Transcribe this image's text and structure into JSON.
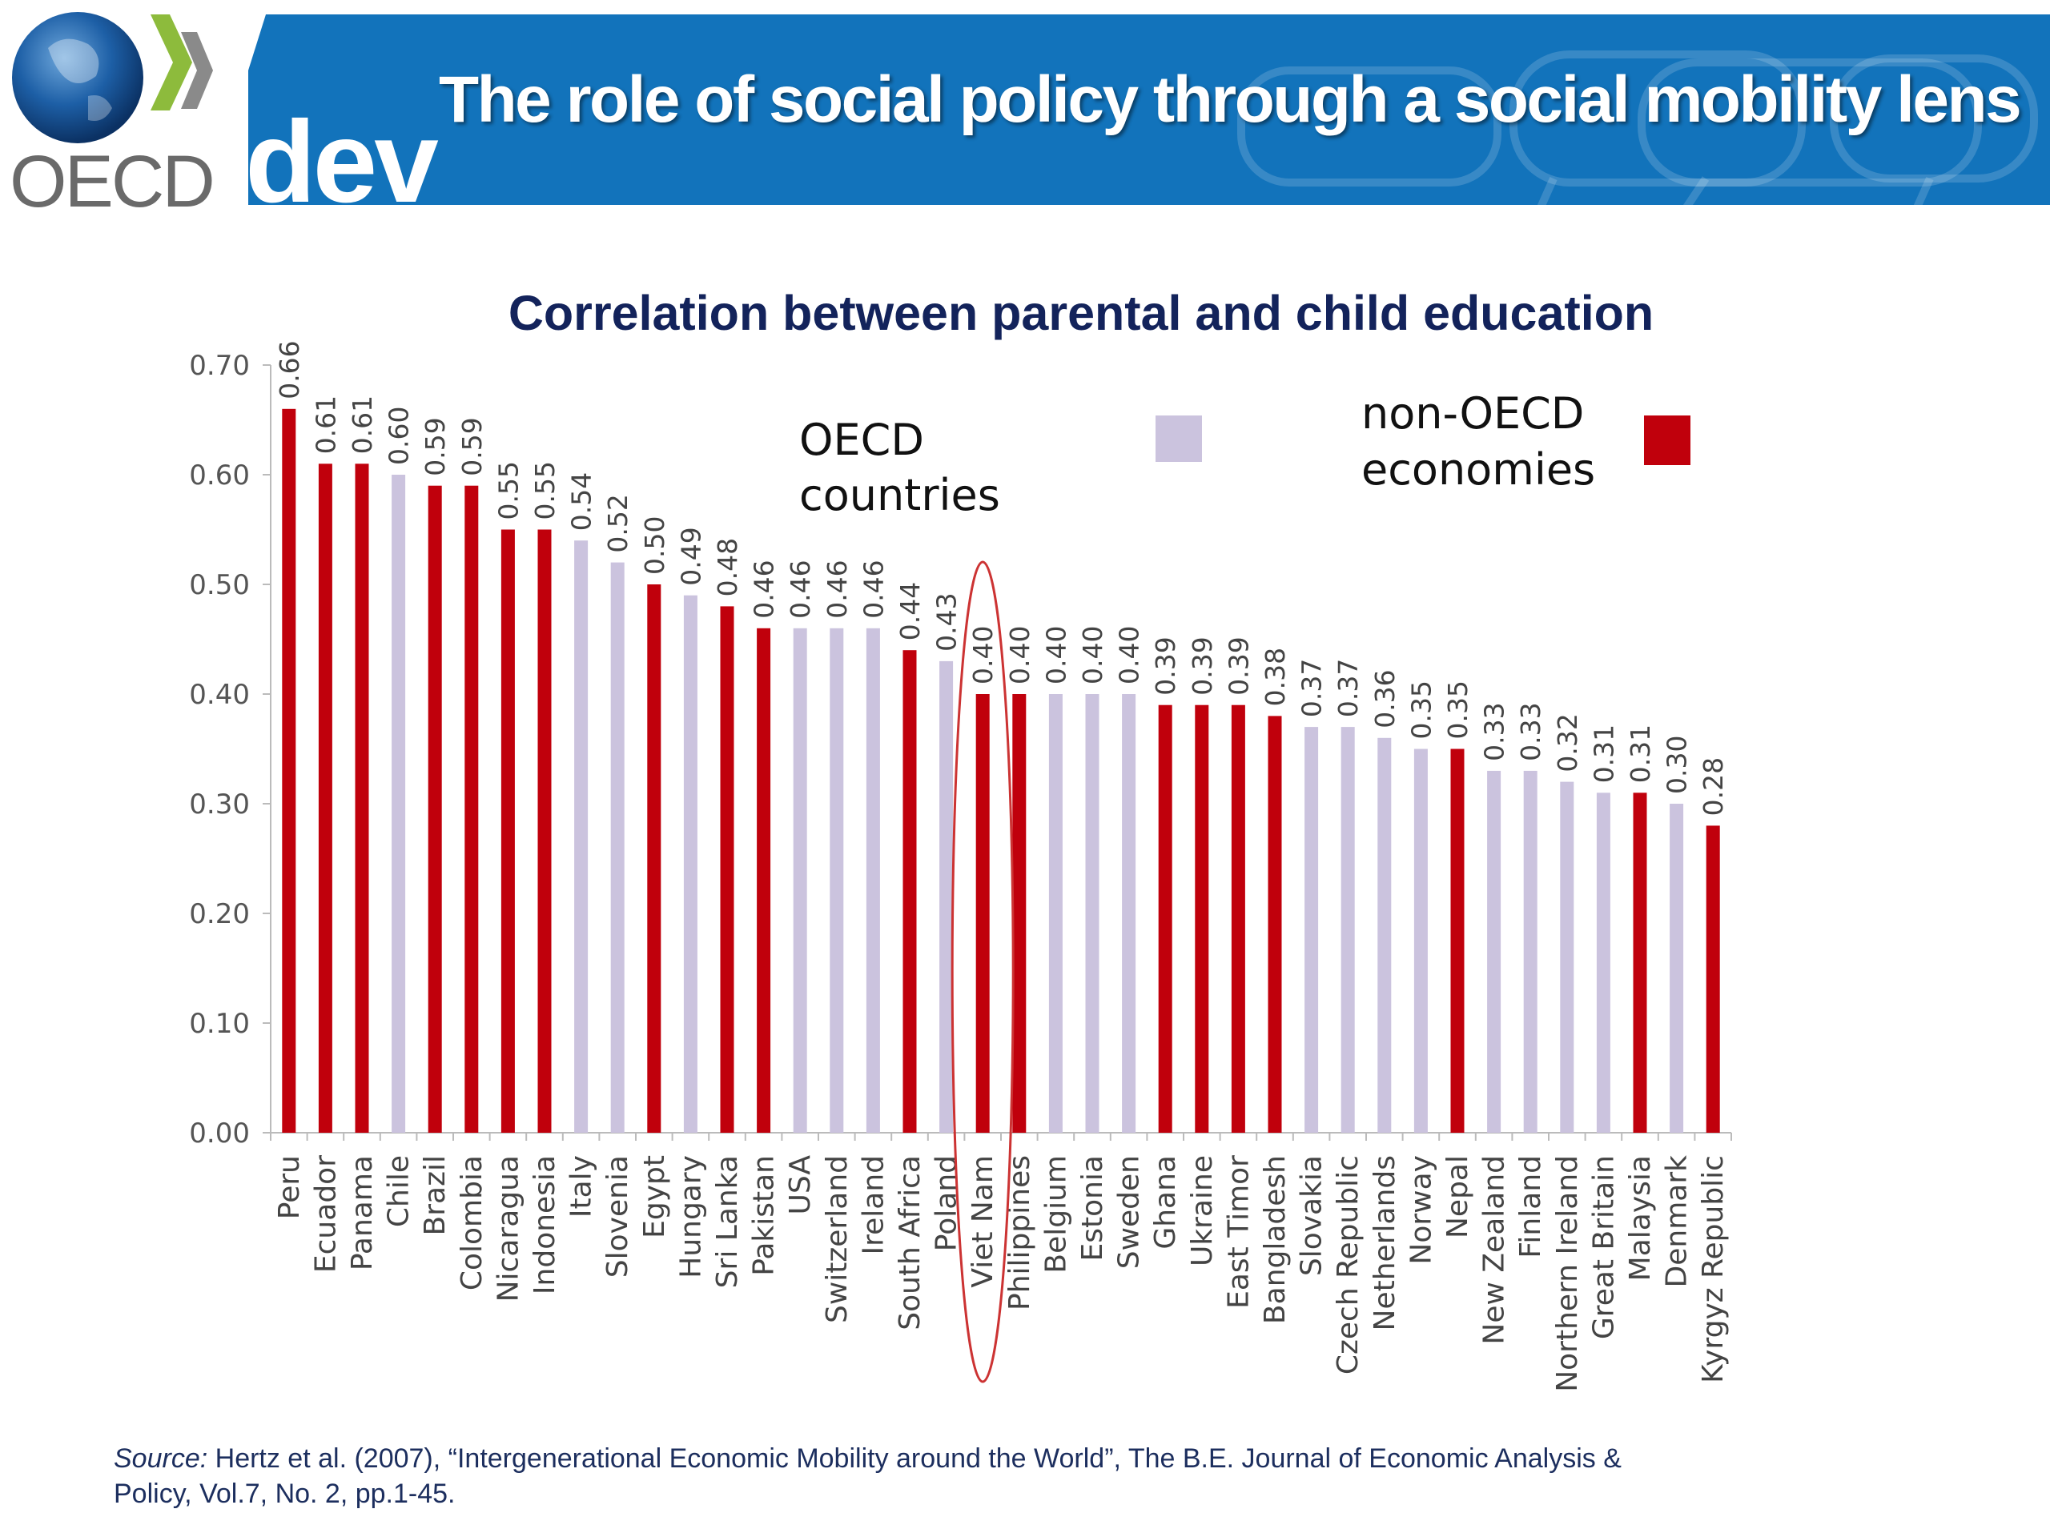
{
  "header": {
    "title": "The role of social policy through a social mobility lens",
    "logo_text": "OECD",
    "dev_text": "dev",
    "bar_color": "#1273bb"
  },
  "chart_data": {
    "type": "bar",
    "title": "Correlation between parental and child education",
    "ylim": [
      0,
      0.7
    ],
    "yticks": [
      "0.00",
      "0.10",
      "0.20",
      "0.30",
      "0.40",
      "0.50",
      "0.60",
      "0.70"
    ],
    "categories": [
      "Peru",
      "Ecuador",
      "Panama",
      "Chile",
      "Brazil",
      "Colombia",
      "Nicaragua",
      "Indonesia",
      "Italy",
      "Slovenia",
      "Egypt",
      "Hungary",
      "Sri Lanka",
      "Pakistan",
      "USA",
      "Switzerland",
      "Ireland",
      "South Africa",
      "Poland",
      "Viet Nam",
      "Philippines",
      "Belgium",
      "Estonia",
      "Sweden",
      "Ghana",
      "Ukraine",
      "East Timor",
      "Bangladesh",
      "Slovakia",
      "Czech Republic",
      "Netherlands",
      "Norway",
      "Nepal",
      "New Zealand",
      "Finland",
      "Northern Ireland",
      "Great Britain",
      "Malaysia",
      "Denmark",
      "Kyrgyz Republic"
    ],
    "values": [
      0.66,
      0.61,
      0.61,
      0.6,
      0.59,
      0.59,
      0.55,
      0.55,
      0.54,
      0.52,
      0.5,
      0.49,
      0.48,
      0.46,
      0.46,
      0.46,
      0.46,
      0.44,
      0.43,
      0.4,
      0.4,
      0.4,
      0.4,
      0.4,
      0.39,
      0.39,
      0.39,
      0.38,
      0.37,
      0.37,
      0.36,
      0.35,
      0.35,
      0.33,
      0.33,
      0.32,
      0.31,
      0.31,
      0.3,
      0.28
    ],
    "value_labels": [
      "0.66",
      "0.61",
      "0.61",
      "0.60",
      "0.59",
      "0.59",
      "0.55",
      "0.55",
      "0.54",
      "0.52",
      "0.50",
      "0.49",
      "0.48",
      "0.46",
      "0.46",
      "0.46",
      "0.46",
      "0.44",
      "0.43",
      "0.40",
      "0.40",
      "0.40",
      "0.40",
      "0.40",
      "0.39",
      "0.39",
      "0.39",
      "0.38",
      "0.37",
      "0.37",
      "0.36",
      "0.35",
      "0.35",
      "0.33",
      "0.33",
      "0.32",
      "0.31",
      "0.31",
      "0.30",
      "0.28"
    ],
    "groups": [
      "non-OECD",
      "non-OECD",
      "non-OECD",
      "OECD",
      "non-OECD",
      "non-OECD",
      "non-OECD",
      "non-OECD",
      "OECD",
      "OECD",
      "non-OECD",
      "OECD",
      "non-OECD",
      "non-OECD",
      "OECD",
      "OECD",
      "OECD",
      "non-OECD",
      "OECD",
      "non-OECD",
      "non-OECD",
      "OECD",
      "OECD",
      "OECD",
      "non-OECD",
      "non-OECD",
      "non-OECD",
      "non-OECD",
      "OECD",
      "OECD",
      "OECD",
      "OECD",
      "non-OECD",
      "OECD",
      "OECD",
      "OECD",
      "OECD",
      "non-OECD",
      "OECD",
      "non-OECD"
    ],
    "legend": [
      {
        "label": "OECD countries",
        "line1": "OECD",
        "line2": "countries",
        "color": "#cbc3de"
      },
      {
        "label": "non-OECD economies",
        "line1": "non-OECD",
        "line2": "economies",
        "color": "#c0000c"
      }
    ],
    "legend_placement": "top-right",
    "highlight": "Viet Nam",
    "grid": false
  },
  "source": {
    "label": "Source:",
    "text": " Hertz et al. (2007), “Intergenerational Economic Mobility around the World”, The B.E. Journal of Economic Analysis & Policy, Vol.7, No. 2, pp.1-45."
  }
}
